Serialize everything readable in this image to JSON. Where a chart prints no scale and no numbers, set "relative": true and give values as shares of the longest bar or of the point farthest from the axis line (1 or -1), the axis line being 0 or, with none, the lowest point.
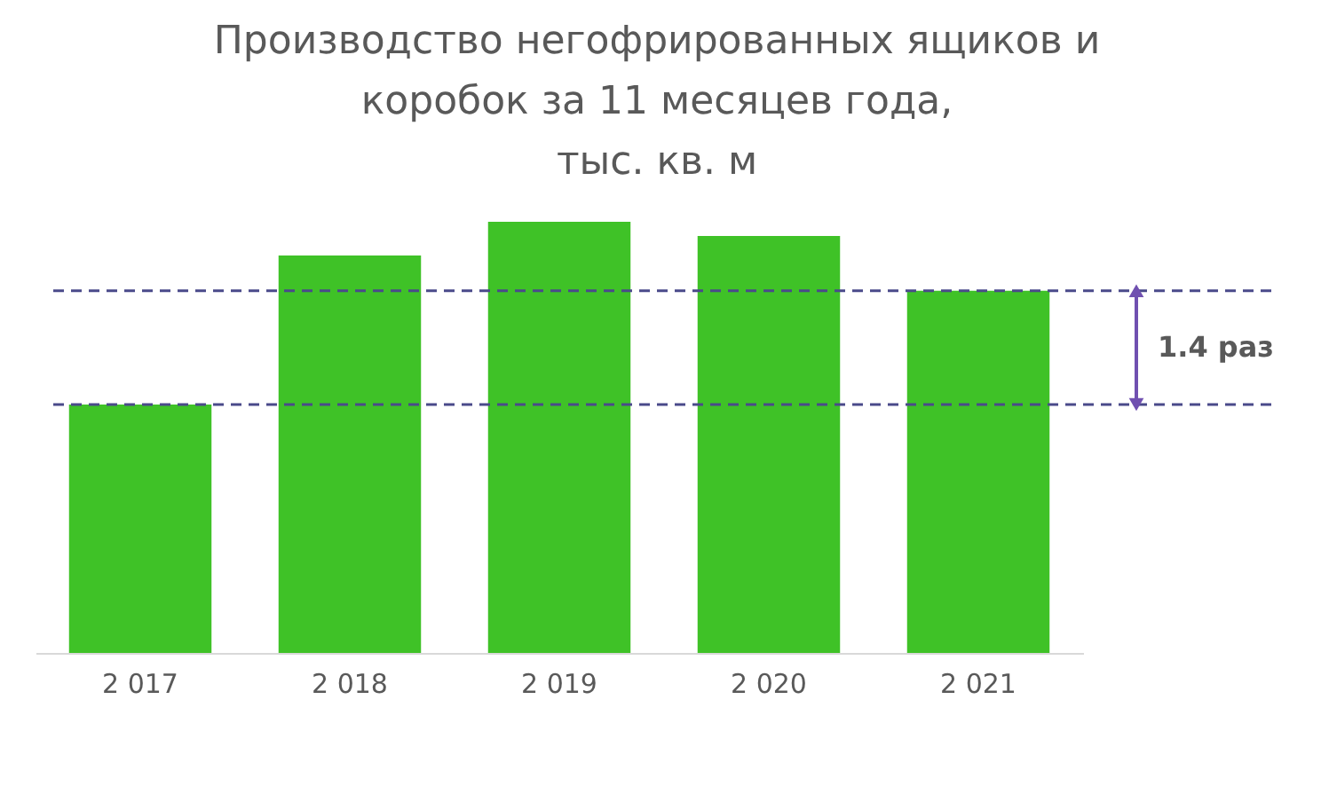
{
  "chart_data": {
    "type": "bar",
    "title": "Производство негофрированных ящиков и\nкоробок за 11 месяцев года,\nтыс. кв. м",
    "categories": [
      "2 017",
      "2 018",
      "2 019",
      "2 020",
      "2 021"
    ],
    "values": [
      0.576,
      0.922,
      1,
      0.967,
      0.84
    ],
    "color": "#3fc227",
    "relative": true,
    "ref_lines": [
      {
        "axis": "y",
        "value": 0.84,
        "color": "#4a4a8a",
        "line_style": "dashed"
      },
      {
        "axis": "y",
        "value": 0.576,
        "color": "#4a4a8a",
        "line_style": "dashed"
      }
    ],
    "annotations": [
      "1.4 раз"
    ]
  }
}
